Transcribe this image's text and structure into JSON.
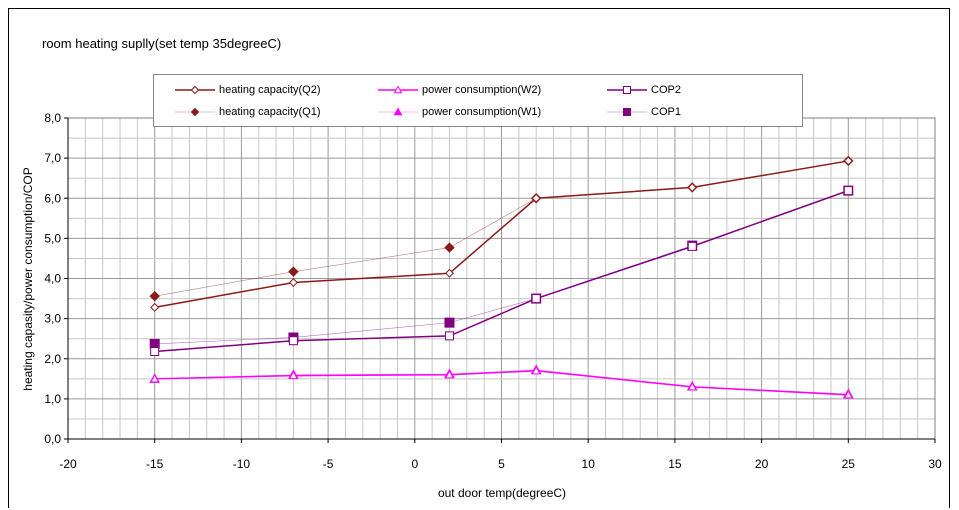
{
  "chart_data": {
    "type": "line",
    "title": "room heating suplly(set temp 35degreeC)",
    "xlabel": "out door temp(degreeC)",
    "ylabel": "heating capasity/power consumption/COP",
    "xlim": [
      -20,
      30
    ],
    "ylim": [
      0,
      8
    ],
    "x_ticks": [
      -20,
      -15,
      -10,
      -5,
      0,
      5,
      10,
      15,
      20,
      25,
      30
    ],
    "x_tick_labels": [
      "-20",
      "-15",
      "-10",
      "-5",
      "0",
      "5",
      "10",
      "15",
      "20",
      "25",
      "30"
    ],
    "y_ticks": [
      0,
      1,
      2,
      3,
      4,
      5,
      6,
      7,
      8
    ],
    "y_tick_labels": [
      "0,0",
      "1,0",
      "2,0",
      "3,0",
      "4,0",
      "5,0",
      "6,0",
      "7,0",
      "8,0"
    ],
    "grid": true,
    "legend_position": "top",
    "series": [
      {
        "name": "heating capacity(Q2)",
        "color": "#8b1a1a",
        "marker": "diamond-open",
        "style": "solid",
        "x": [
          -15,
          -7,
          2,
          7,
          16,
          25
        ],
        "y": [
          3.28,
          3.9,
          4.13,
          6.0,
          6.27,
          6.93
        ]
      },
      {
        "name": "power consumption(W2)",
        "color": "#ff00ff",
        "marker": "triangle-open",
        "style": "solid",
        "x": [
          -15,
          -7,
          2,
          7,
          16,
          25
        ],
        "y": [
          1.5,
          1.58,
          1.6,
          1.7,
          1.3,
          1.1
        ]
      },
      {
        "name": "COP2",
        "color": "#800080",
        "marker": "square-open",
        "style": "solid",
        "x": [
          -15,
          -7,
          2,
          7,
          16,
          25
        ],
        "y": [
          2.18,
          2.45,
          2.57,
          3.5,
          4.8,
          6.19
        ]
      },
      {
        "name": "heating capacity(Q1)",
        "color": "#8b1a1a",
        "marker": "diamond-filled",
        "style": "thin",
        "x": [
          -15,
          -7,
          2,
          7,
          16,
          25
        ],
        "y": [
          3.56,
          4.17,
          4.77,
          6.0,
          6.27,
          6.93
        ]
      },
      {
        "name": "power consumption(W1)",
        "color": "#ff00ff",
        "marker": "triangle-filled",
        "style": "thin",
        "x": [
          -15,
          -7,
          2,
          7,
          16,
          25
        ],
        "y": [
          1.5,
          1.6,
          1.62,
          1.72,
          1.31,
          1.12
        ]
      },
      {
        "name": "COP1",
        "color": "#800080",
        "marker": "square-filled",
        "style": "thin",
        "x": [
          -15,
          -7,
          2,
          7,
          16,
          25
        ],
        "y": [
          2.37,
          2.53,
          2.9,
          3.5,
          4.82,
          6.19
        ]
      }
    ]
  }
}
